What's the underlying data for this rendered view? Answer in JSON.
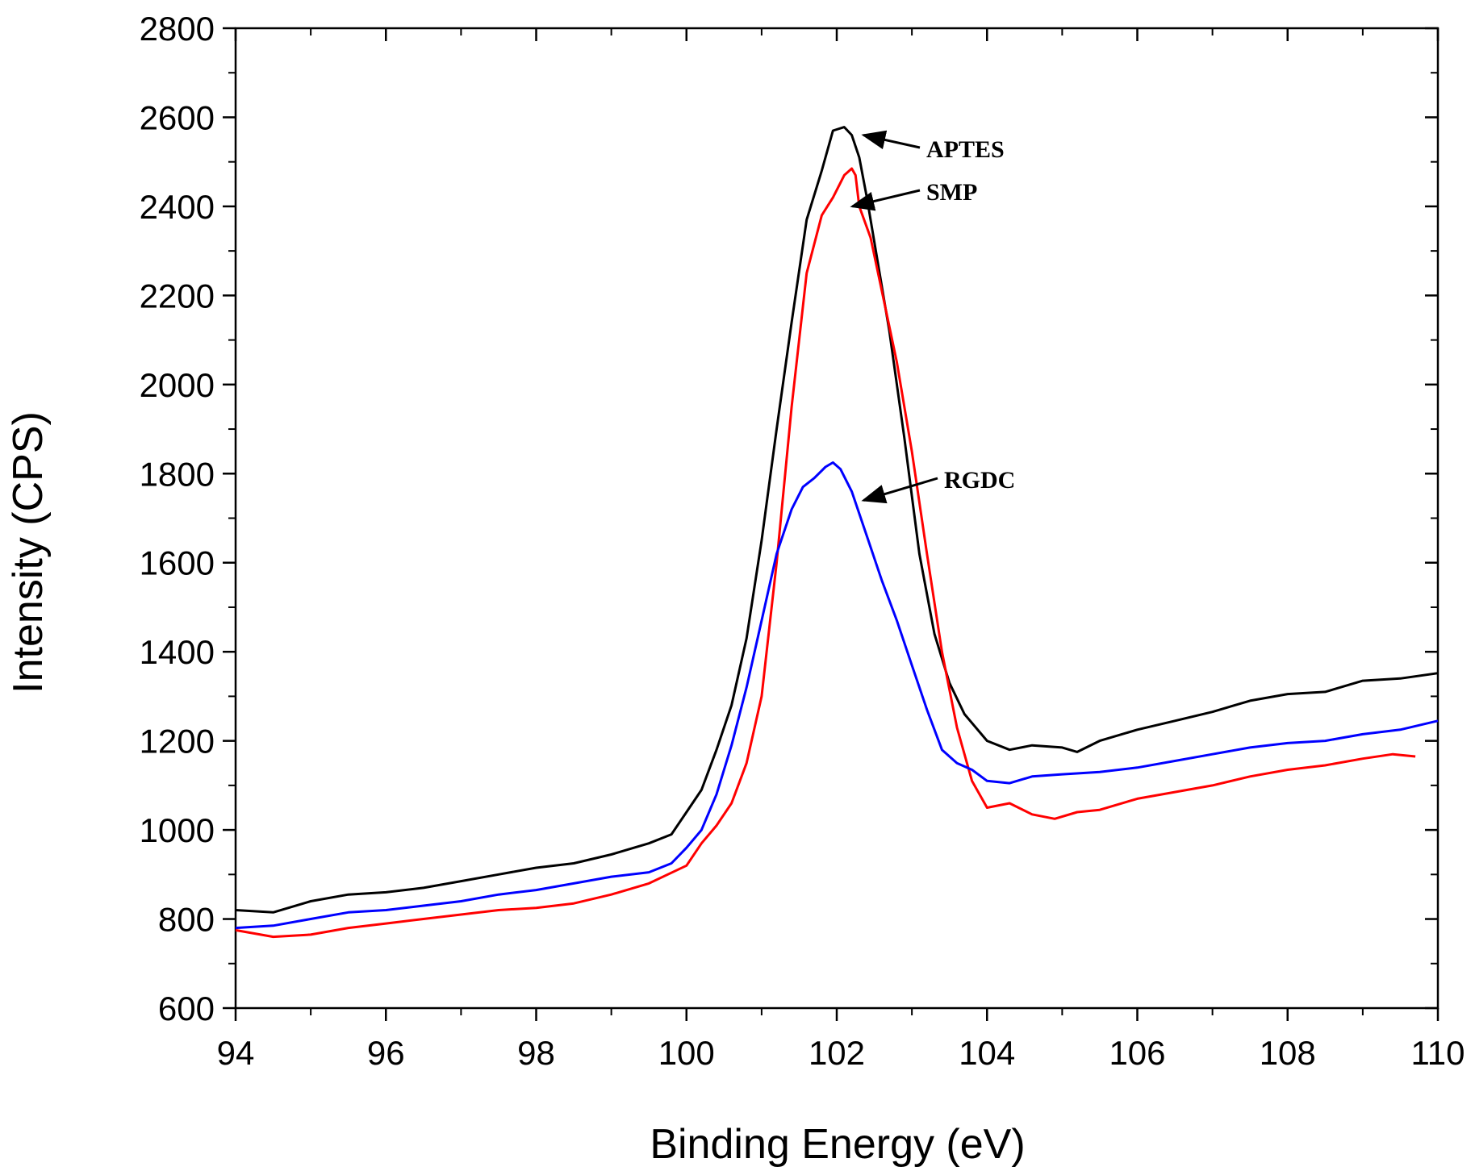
{
  "chart_data": {
    "type": "line",
    "title": "",
    "xlabel": "Binding Energy (eV)",
    "ylabel": "Intensity (CPS)",
    "xlim": [
      94,
      110
    ],
    "ylim": [
      600,
      2800
    ],
    "xticks": [
      94,
      96,
      98,
      100,
      102,
      104,
      106,
      108,
      110
    ],
    "yticks": [
      600,
      800,
      1000,
      1200,
      1400,
      1600,
      1800,
      2000,
      2200,
      2400,
      2600,
      2800
    ],
    "grid": false,
    "legend": "none",
    "series": [
      {
        "name": "APTES",
        "color": "#000000",
        "x": [
          94.0,
          94.5,
          95.0,
          95.5,
          96.0,
          96.5,
          97.0,
          97.5,
          98.0,
          98.5,
          99.0,
          99.5,
          99.8,
          100.0,
          100.2,
          100.4,
          100.6,
          100.8,
          101.0,
          101.2,
          101.4,
          101.6,
          101.8,
          101.95,
          102.1,
          102.2,
          102.3,
          102.4,
          102.5,
          102.7,
          102.9,
          103.1,
          103.3,
          103.5,
          103.7,
          104.0,
          104.3,
          104.6,
          105.0,
          105.2,
          105.5,
          106.0,
          106.5,
          107.0,
          107.5,
          108.0,
          108.5,
          109.0,
          109.5,
          110.0
        ],
        "y": [
          820,
          815,
          840,
          855,
          860,
          870,
          885,
          900,
          915,
          925,
          945,
          970,
          990,
          1040,
          1090,
          1180,
          1280,
          1430,
          1650,
          1900,
          2140,
          2370,
          2480,
          2570,
          2578,
          2560,
          2510,
          2420,
          2320,
          2120,
          1880,
          1620,
          1440,
          1330,
          1260,
          1200,
          1180,
          1190,
          1185,
          1175,
          1200,
          1225,
          1245,
          1265,
          1290,
          1305,
          1310,
          1335,
          1340,
          1352
        ]
      },
      {
        "name": "SMP",
        "color": "#ff0000",
        "x": [
          94.0,
          94.5,
          95.0,
          95.5,
          96.0,
          96.5,
          97.0,
          97.5,
          98.0,
          98.5,
          99.0,
          99.5,
          100.0,
          100.2,
          100.4,
          100.6,
          100.8,
          101.0,
          101.2,
          101.4,
          101.6,
          101.8,
          101.95,
          102.1,
          102.2,
          102.25,
          102.3,
          102.45,
          102.6,
          102.8,
          103.0,
          103.2,
          103.4,
          103.6,
          103.8,
          104.0,
          104.3,
          104.6,
          104.9,
          105.2,
          105.5,
          106.0,
          106.5,
          107.0,
          107.5,
          108.0,
          108.5,
          109.0,
          109.4,
          109.7
        ],
        "y": [
          775,
          760,
          765,
          780,
          790,
          800,
          810,
          820,
          825,
          835,
          855,
          880,
          920,
          970,
          1010,
          1060,
          1150,
          1300,
          1600,
          1950,
          2250,
          2380,
          2420,
          2470,
          2485,
          2470,
          2400,
          2330,
          2210,
          2050,
          1850,
          1620,
          1400,
          1230,
          1110,
          1050,
          1060,
          1035,
          1025,
          1040,
          1045,
          1070,
          1085,
          1100,
          1120,
          1135,
          1145,
          1160,
          1170,
          1165
        ]
      },
      {
        "name": "RGDC",
        "color": "#0000ff",
        "x": [
          94.0,
          94.5,
          95.0,
          95.5,
          96.0,
          96.5,
          97.0,
          97.5,
          98.0,
          98.5,
          99.0,
          99.5,
          99.8,
          100.0,
          100.2,
          100.4,
          100.6,
          100.8,
          101.0,
          101.2,
          101.4,
          101.55,
          101.7,
          101.85,
          101.95,
          102.05,
          102.2,
          102.4,
          102.6,
          102.8,
          103.0,
          103.2,
          103.4,
          103.6,
          103.8,
          104.0,
          104.3,
          104.6,
          105.0,
          105.5,
          106.0,
          106.5,
          107.0,
          107.5,
          108.0,
          108.5,
          109.0,
          109.5,
          110.0
        ],
        "y": [
          780,
          785,
          800,
          815,
          820,
          830,
          840,
          855,
          865,
          880,
          895,
          905,
          925,
          960,
          1000,
          1080,
          1190,
          1320,
          1470,
          1620,
          1720,
          1770,
          1790,
          1815,
          1825,
          1810,
          1760,
          1660,
          1560,
          1470,
          1370,
          1270,
          1180,
          1150,
          1135,
          1110,
          1105,
          1120,
          1125,
          1130,
          1140,
          1155,
          1170,
          1185,
          1195,
          1200,
          1215,
          1225,
          1245
        ]
      }
    ],
    "annotations": [
      {
        "text": "APTES",
        "target": [
          102.25,
          2560
        ]
      },
      {
        "text": "SMP",
        "target": [
          102.1,
          2400
        ]
      },
      {
        "text": "RGDC",
        "target": [
          102.25,
          1740
        ]
      }
    ]
  }
}
